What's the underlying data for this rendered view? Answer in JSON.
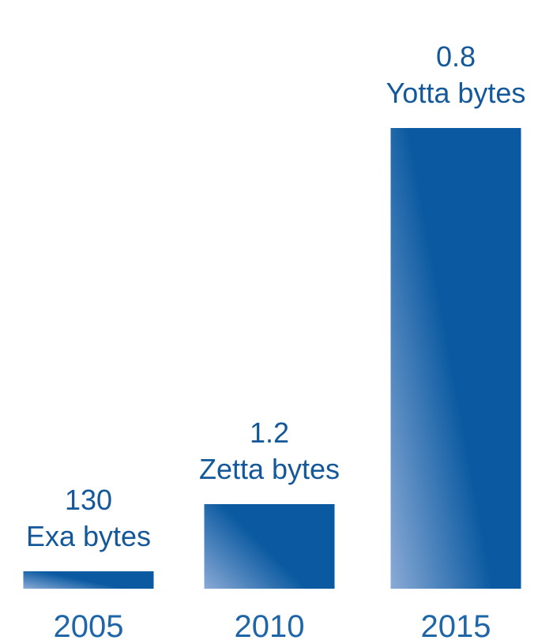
{
  "chart_data": {
    "type": "bar",
    "categories": [
      "2005",
      "2010",
      "2015"
    ],
    "values": [
      0.00013,
      0.0012,
      0.8
    ],
    "units": "Yotta bytes",
    "data_labels": [
      [
        "130",
        "Exa bytes"
      ],
      [
        "1.2",
        "Zetta bytes"
      ],
      [
        "0.8",
        "Yotta bytes"
      ]
    ],
    "axes_visible": false,
    "grid": false,
    "legend": "none"
  },
  "colors": {
    "bar_dark": "#0b5aa1",
    "bar_light": "#8aaad6",
    "label_text": "#14589a",
    "tick_text": "#1f66a8"
  }
}
